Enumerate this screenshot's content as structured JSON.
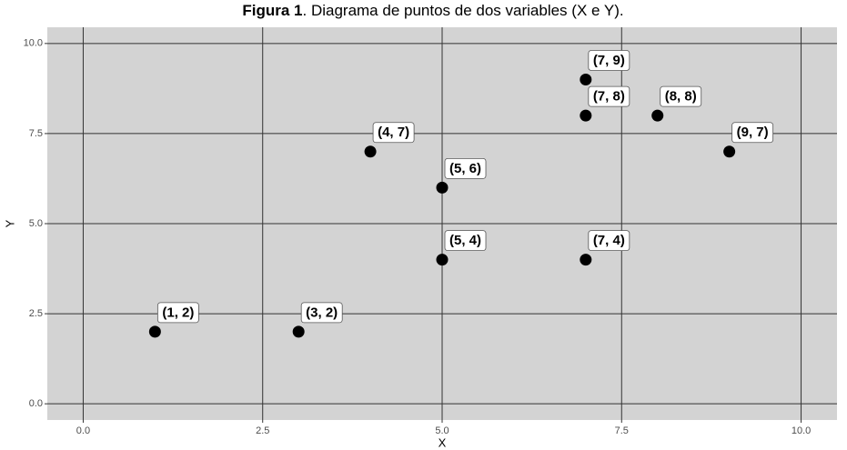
{
  "chart_data": {
    "type": "scatter",
    "title": [
      "Figura 1",
      ". Diagrama de puntos de dos variables (X e Y)."
    ],
    "x_label": "X",
    "y_label": "Y",
    "x": [
      1,
      3,
      4,
      5,
      5,
      7,
      7,
      8,
      9,
      7
    ],
    "values": [
      2,
      2,
      7,
      6,
      4,
      9,
      8,
      8,
      7,
      4
    ],
    "value_labels": [
      "(1, 2)",
      "(3, 2)",
      "(4, 7)",
      "(5, 6)",
      "(5, 4)",
      "(7, 9)",
      "(7, 8)",
      "(8, 8)",
      "(9, 7)",
      "(7, 4)"
    ],
    "color": "#000000",
    "xlim": [
      -0.5,
      10.5
    ],
    "ylim": [
      -0.45,
      10.45
    ],
    "xticks": [
      {
        "value": 0,
        "label": "0.0"
      },
      2.5,
      {
        "value": 5,
        "label": "5.0"
      },
      7.5,
      {
        "value": 10,
        "label": "10.0"
      }
    ],
    "yticks": [
      {
        "value": 0,
        "label": "0.0"
      },
      2.5,
      {
        "value": 5,
        "label": "5.0"
      },
      7.5,
      {
        "value": 10,
        "label": "10.0"
      }
    ],
    "grid": true
  }
}
